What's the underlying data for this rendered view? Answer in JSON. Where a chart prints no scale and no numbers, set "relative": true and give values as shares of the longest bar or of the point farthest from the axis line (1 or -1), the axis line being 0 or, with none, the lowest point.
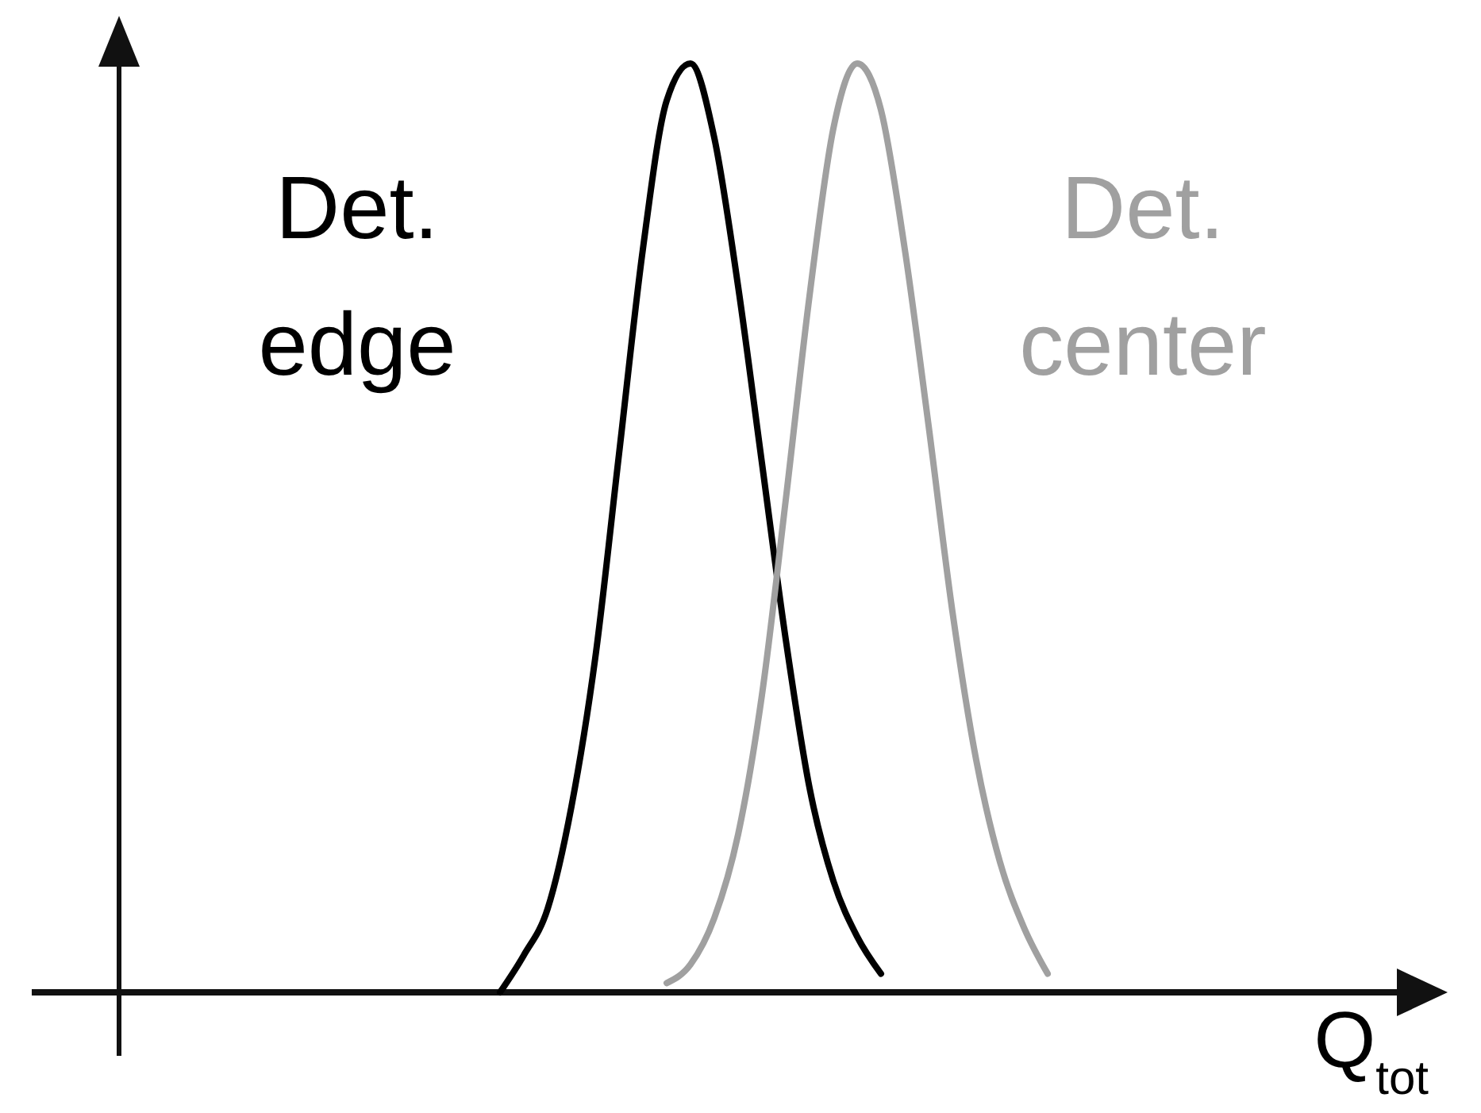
{
  "chart_data": {
    "type": "line",
    "relative": true,
    "xlabel": "Q$_{tot}$",
    "categories": [
      null,
      null,
      null,
      null,
      null,
      null,
      null,
      null,
      null,
      null,
      null,
      null,
      null,
      null,
      null,
      null,
      null,
      null,
      null,
      null,
      null,
      null,
      null,
      null,
      null,
      null,
      null,
      null,
      null,
      null,
      null,
      null,
      null,
      null,
      null,
      null,
      null,
      null,
      null,
      null,
      null,
      null,
      null,
      null,
      null,
      null,
      null,
      null,
      null,
      null,
      null,
      null,
      null,
      null,
      null,
      null
    ],
    "series": [
      {
        "name": "Det. edge",
        "color": "#000000",
        "values": [
          null,
          null,
          null,
          null,
          null,
          null,
          null,
          null,
          null,
          null,
          null,
          null,
          null,
          null,
          null,
          null,
          0,
          0.04,
          0.09,
          0.2,
          0.36,
          0.58,
          0.8,
          0.96,
          1,
          0.92,
          0.76,
          0.57,
          0.38,
          0.22,
          0.12,
          0.06,
          0.02,
          null,
          null,
          null,
          null,
          null,
          null,
          null,
          null,
          null,
          null,
          null,
          null,
          null,
          null,
          null,
          null,
          null,
          null,
          null,
          null,
          null,
          null,
          null
        ]
      },
      {
        "name": "Det. center",
        "color": "#a0a0a0",
        "values": [
          null,
          null,
          null,
          null,
          null,
          null,
          null,
          null,
          null,
          null,
          null,
          null,
          null,
          null,
          null,
          null,
          null,
          null,
          null,
          null,
          null,
          null,
          null,
          0.01,
          0.03,
          0.08,
          0.17,
          0.32,
          0.53,
          0.75,
          0.93,
          1,
          0.95,
          0.8,
          0.61,
          0.41,
          0.25,
          0.14,
          0.07,
          0.02,
          null,
          null,
          null,
          null,
          null,
          null,
          null,
          null,
          null,
          null,
          null,
          null,
          null,
          null,
          null,
          null
        ]
      }
    ]
  }
}
